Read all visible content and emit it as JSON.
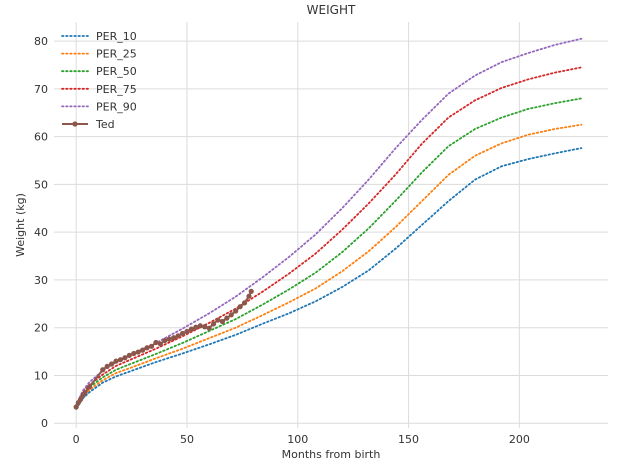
{
  "chart_data": {
    "type": "line",
    "title": "WEIGHT",
    "xlabel": "Months from birth",
    "ylabel": "Weight (kg)",
    "xlim": [
      -10,
      240
    ],
    "ylim": [
      -1,
      84
    ],
    "xticks": [
      0,
      50,
      100,
      150,
      200
    ],
    "yticks": [
      0,
      10,
      20,
      30,
      40,
      50,
      60,
      70,
      80
    ],
    "grid": true,
    "legend_position": "top-left",
    "series": [
      {
        "name": "PER_10",
        "color": "#1f77b4",
        "style": "dotted",
        "x": [
          0,
          3,
          6,
          12,
          18,
          24,
          36,
          48,
          60,
          72,
          84,
          96,
          108,
          120,
          132,
          144,
          156,
          168,
          180,
          192,
          204,
          216,
          228
        ],
        "y": [
          3.0,
          5.2,
          6.5,
          8.5,
          9.8,
          10.8,
          12.8,
          14.6,
          16.5,
          18.5,
          20.8,
          23.0,
          25.5,
          28.5,
          32.0,
          36.5,
          41.5,
          46.5,
          51.0,
          53.8,
          55.3,
          56.5,
          57.6
        ]
      },
      {
        "name": "PER_25",
        "color": "#ff7f0e",
        "style": "dotted",
        "x": [
          0,
          3,
          6,
          12,
          18,
          24,
          36,
          48,
          60,
          72,
          84,
          96,
          108,
          120,
          132,
          144,
          156,
          168,
          180,
          192,
          204,
          216,
          228
        ],
        "y": [
          3.2,
          5.6,
          7.0,
          9.0,
          10.5,
          11.5,
          13.6,
          15.6,
          17.8,
          20.0,
          22.6,
          25.3,
          28.2,
          31.8,
          36.0,
          41.0,
          46.5,
          52.0,
          56.0,
          58.6,
          60.4,
          61.6,
          62.5
        ]
      },
      {
        "name": "PER_50",
        "color": "#2ca02c",
        "style": "dotted",
        "x": [
          0,
          3,
          6,
          12,
          18,
          24,
          36,
          48,
          60,
          72,
          84,
          96,
          108,
          120,
          132,
          144,
          156,
          168,
          180,
          192,
          204,
          216,
          228
        ],
        "y": [
          3.4,
          6.0,
          7.5,
          9.6,
          11.2,
          12.3,
          14.5,
          16.8,
          19.3,
          21.8,
          24.8,
          28.0,
          31.5,
          35.8,
          40.8,
          46.5,
          52.5,
          58.0,
          61.6,
          64.0,
          65.8,
          67.0,
          68.0
        ]
      },
      {
        "name": "PER_75",
        "color": "#d62728",
        "style": "dotted",
        "x": [
          0,
          3,
          6,
          12,
          18,
          24,
          36,
          48,
          60,
          72,
          84,
          96,
          108,
          120,
          132,
          144,
          156,
          168,
          180,
          192,
          204,
          216,
          228
        ],
        "y": [
          3.6,
          6.4,
          8.0,
          10.2,
          12.0,
          13.2,
          15.6,
          18.2,
          21.0,
          24.0,
          27.5,
          31.3,
          35.5,
          40.5,
          46.0,
          52.0,
          58.5,
          64.0,
          67.6,
          70.2,
          72.0,
          73.4,
          74.5
        ]
      },
      {
        "name": "PER_90",
        "color": "#9467bd",
        "style": "dotted",
        "x": [
          0,
          3,
          6,
          12,
          18,
          24,
          36,
          48,
          60,
          72,
          84,
          96,
          108,
          120,
          132,
          144,
          156,
          168,
          180,
          192,
          204,
          216,
          228
        ],
        "y": [
          3.8,
          6.8,
          8.6,
          11.0,
          12.8,
          14.2,
          16.8,
          19.8,
          23.0,
          26.5,
          30.5,
          34.8,
          39.5,
          45.0,
          51.0,
          57.5,
          63.5,
          69.0,
          72.8,
          75.6,
          77.5,
          79.2,
          80.5
        ]
      },
      {
        "name": "Ted",
        "color": "#8c564b",
        "style": "solid-marker",
        "x": [
          0,
          1,
          2,
          3,
          4,
          6,
          12,
          14,
          16,
          18,
          20,
          22,
          24,
          26,
          28,
          30,
          32,
          34,
          36,
          38,
          40,
          42,
          44,
          46,
          48,
          50,
          52,
          54,
          56,
          58,
          60,
          62,
          64,
          66,
          68,
          70,
          72,
          74,
          76,
          78,
          79
        ],
        "y": [
          3.4,
          4.3,
          5.0,
          5.8,
          6.4,
          7.6,
          11.2,
          11.9,
          12.4,
          13.0,
          13.3,
          13.7,
          14.2,
          14.6,
          14.9,
          15.3,
          15.8,
          16.1,
          16.9,
          16.6,
          17.3,
          17.6,
          17.9,
          18.3,
          18.8,
          19.2,
          19.7,
          20.1,
          20.4,
          20.2,
          19.9,
          20.8,
          21.6,
          21.3,
          22.0,
          22.7,
          23.5,
          24.4,
          25.2,
          26.6,
          27.6
        ]
      }
    ]
  }
}
